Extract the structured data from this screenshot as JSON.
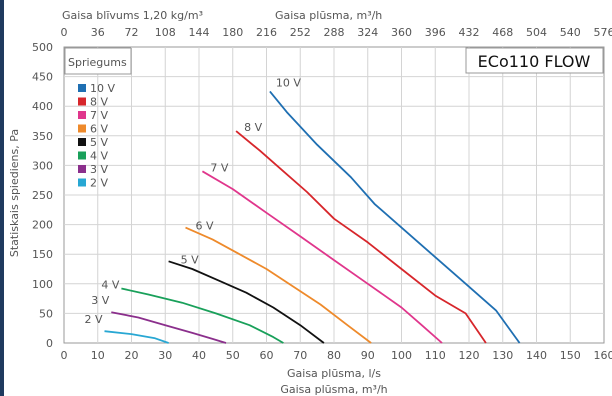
{
  "chart_data": {
    "type": "line",
    "title": "ECo110 FLOW",
    "top_axis_label_1": "Gaisa blīvums 1,20 kg/m³",
    "top_axis_label_2": "Gaisa plūsma, m³/h",
    "xlabel": "Gaisa plūsma, l/s",
    "xlabel_2": "Gaisa plūsma, m³/h",
    "ylabel": "Statiskais spiediens, Pa",
    "legend_title": "Spriegums",
    "xlim": [
      0,
      160
    ],
    "ylim": [
      0,
      500
    ],
    "x_ticks": [
      "0",
      "10",
      "20",
      "30",
      "40",
      "50",
      "60",
      "70",
      "80",
      "90",
      "100",
      "110",
      "120",
      "130",
      "140",
      "150",
      "160"
    ],
    "y_ticks": [
      "0",
      "50",
      "100",
      "150",
      "200",
      "250",
      "300",
      "350",
      "400",
      "450",
      "500"
    ],
    "top_ticks": [
      "0",
      "36",
      "72",
      "108",
      "144",
      "180",
      "216",
      "252",
      "288",
      "324",
      "360",
      "396",
      "432",
      "468",
      "504",
      "540",
      "576"
    ],
    "grid": true,
    "legend_position": "top-left",
    "series": [
      {
        "name": "10 V",
        "color": "#1f6fb2",
        "x": [
          61,
          66,
          75,
          85,
          92,
          100,
          110,
          118,
          128,
          135
        ],
        "y": [
          425,
          390,
          335,
          280,
          235,
          195,
          145,
          105,
          55,
          0
        ]
      },
      {
        "name": "8 V",
        "color": "#d7262b",
        "x": [
          51,
          58,
          65,
          72,
          80,
          90,
          100,
          110,
          119,
          125
        ],
        "y": [
          358,
          325,
          290,
          255,
          210,
          170,
          125,
          80,
          50,
          0
        ]
      },
      {
        "name": "7 V",
        "color": "#e0368c",
        "x": [
          41,
          50,
          60,
          70,
          80,
          90,
          100,
          106,
          112
        ],
        "y": [
          290,
          260,
          220,
          180,
          140,
          100,
          60,
          30,
          0
        ]
      },
      {
        "name": "6 V",
        "color": "#ee8a2b",
        "x": [
          36,
          44,
          52,
          60,
          68,
          76,
          84,
          91
        ],
        "y": [
          195,
          175,
          150,
          125,
          95,
          65,
          30,
          0
        ]
      },
      {
        "name": "5 V",
        "color": "#111111",
        "x": [
          31,
          38,
          46,
          54,
          62,
          70,
          77
        ],
        "y": [
          138,
          125,
          105,
          85,
          60,
          30,
          0
        ]
      },
      {
        "name": "4 V",
        "color": "#19a05a",
        "x": [
          17,
          25,
          35,
          45,
          55,
          62,
          65
        ],
        "y": [
          92,
          82,
          68,
          50,
          30,
          10,
          0
        ]
      },
      {
        "name": "3 V",
        "color": "#8b2f8c",
        "x": [
          14,
          22,
          30,
          38,
          44,
          48
        ],
        "y": [
          52,
          43,
          30,
          17,
          7,
          0
        ]
      },
      {
        "name": "2 V",
        "color": "#28a7d3",
        "x": [
          12,
          20,
          27,
          31
        ],
        "y": [
          20,
          15,
          8,
          0
        ]
      }
    ],
    "curve_labels": [
      "10 V",
      "8 V",
      "7 V",
      "6 V",
      "5 V",
      "4 V",
      "3 V",
      "2 V"
    ]
  }
}
